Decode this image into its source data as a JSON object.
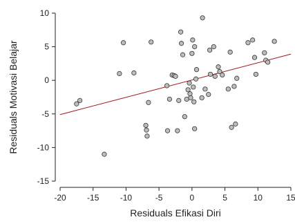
{
  "chart_data": {
    "type": "scatter",
    "title": "",
    "xlabel": "Residuals Efikasi Diri",
    "ylabel": "Residuals Motivasi Belajar",
    "xlim": [
      -20,
      15
    ],
    "ylim": [
      -15,
      10
    ],
    "xticks": [
      -20,
      -15,
      -10,
      -5,
      0,
      5,
      10,
      15
    ],
    "yticks": [
      -15,
      -10,
      -5,
      0,
      5,
      10
    ],
    "grid": false,
    "legend": "none",
    "colors": {
      "points": "#bdbdbd",
      "point_stroke": "#333333",
      "fit_line": "#a31515",
      "axis": "#222222"
    },
    "fit_line": {
      "x": [
        -20,
        15
      ],
      "y": [
        -5.1,
        3.9
      ]
    },
    "points": [
      {
        "x": -17.5,
        "y": -3.5
      },
      {
        "x": -17.0,
        "y": -3.0
      },
      {
        "x": -13.3,
        "y": -11.0
      },
      {
        "x": -11.0,
        "y": 1.0
      },
      {
        "x": -10.4,
        "y": 5.6
      },
      {
        "x": -8.8,
        "y": 1.1
      },
      {
        "x": -7.0,
        "y": -6.7
      },
      {
        "x": -6.9,
        "y": -7.4
      },
      {
        "x": -6.8,
        "y": -8.3
      },
      {
        "x": -6.6,
        "y": -3.3
      },
      {
        "x": -6.2,
        "y": 5.7
      },
      {
        "x": -3.8,
        "y": -0.8
      },
      {
        "x": -3.7,
        "y": -7.5
      },
      {
        "x": -3.4,
        "y": -2.8
      },
      {
        "x": -3.0,
        "y": 0.8
      },
      {
        "x": -2.7,
        "y": 0.7
      },
      {
        "x": -2.5,
        "y": 0.6
      },
      {
        "x": -2.2,
        "y": -7.5
      },
      {
        "x": -2.0,
        "y": -3.0
      },
      {
        "x": -1.7,
        "y": 7.2
      },
      {
        "x": -1.6,
        "y": 5.5
      },
      {
        "x": -1.4,
        "y": 3.8
      },
      {
        "x": -1.1,
        "y": -5.4
      },
      {
        "x": -0.8,
        "y": -2.8
      },
      {
        "x": -0.6,
        "y": -1.4
      },
      {
        "x": -0.4,
        "y": -0.4
      },
      {
        "x": -0.3,
        "y": -2.0
      },
      {
        "x": -0.2,
        "y": -2.6
      },
      {
        "x": 0.0,
        "y": 4.0
      },
      {
        "x": 0.1,
        "y": 6.0
      },
      {
        "x": 0.2,
        "y": -1.0
      },
      {
        "x": 0.3,
        "y": -3.2
      },
      {
        "x": 0.4,
        "y": 5.0
      },
      {
        "x": 0.4,
        "y": -7.2
      },
      {
        "x": 0.6,
        "y": 0.2
      },
      {
        "x": 0.7,
        "y": 1.6
      },
      {
        "x": 1.5,
        "y": -2.6
      },
      {
        "x": 1.6,
        "y": 9.3
      },
      {
        "x": 2.0,
        "y": -1.3
      },
      {
        "x": 2.5,
        "y": -2.1
      },
      {
        "x": 2.7,
        "y": 4.5
      },
      {
        "x": 2.8,
        "y": 0.9
      },
      {
        "x": 3.3,
        "y": 5.0
      },
      {
        "x": 3.5,
        "y": 0.6
      },
      {
        "x": 4.0,
        "y": 2.0
      },
      {
        "x": 4.2,
        "y": 1.3
      },
      {
        "x": 4.6,
        "y": 0.8
      },
      {
        "x": 5.5,
        "y": -1.3
      },
      {
        "x": 5.8,
        "y": 4.2
      },
      {
        "x": 6.0,
        "y": -7.0
      },
      {
        "x": 6.4,
        "y": -0.9
      },
      {
        "x": 6.6,
        "y": -6.5
      },
      {
        "x": 6.8,
        "y": 0.3
      },
      {
        "x": 8.5,
        "y": 5.6
      },
      {
        "x": 9.2,
        "y": 6.0
      },
      {
        "x": 9.5,
        "y": 3.4
      },
      {
        "x": 9.7,
        "y": 0.9
      },
      {
        "x": 11.0,
        "y": 4.1
      },
      {
        "x": 11.2,
        "y": 3.0
      },
      {
        "x": 11.5,
        "y": 2.7
      },
      {
        "x": 12.5,
        "y": 5.8
      }
    ]
  }
}
